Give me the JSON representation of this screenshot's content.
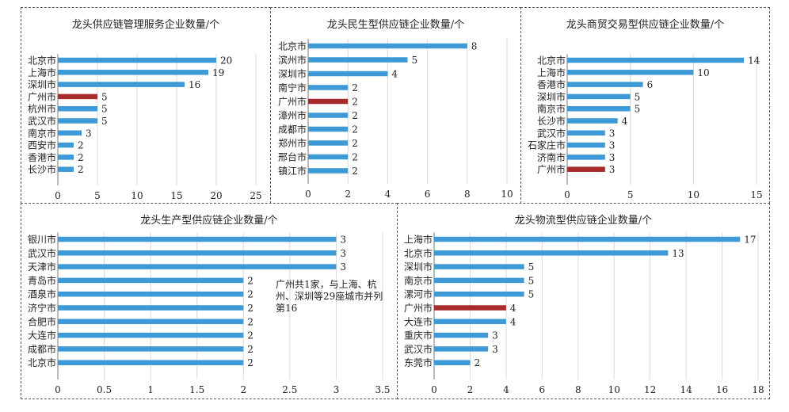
{
  "colors": {
    "bar": "#3d9ad6",
    "highlight": "#a82b2b",
    "grid": "#d9d9d9",
    "axis": "#777777"
  },
  "chart_data": [
    {
      "type": "bar",
      "orientation": "horizontal",
      "title": "龙头供应链管理服务企业数量/个",
      "categories": [
        "北京市",
        "上海市",
        "深圳市",
        "广州市",
        "杭州市",
        "武汉市",
        "南京市",
        "西安市",
        "香港市",
        "长沙市"
      ],
      "values": [
        20,
        19,
        16,
        5,
        5,
        5,
        3,
        2,
        2,
        2
      ],
      "highlight": "广州市",
      "xlim": [
        0,
        25
      ],
      "xticks": [
        0,
        5,
        10,
        15,
        20,
        25
      ],
      "grid": true
    },
    {
      "type": "bar",
      "orientation": "horizontal",
      "title": "龙头民生型供应链企业数量/个",
      "categories": [
        "北京市",
        "滨州市",
        "深圳市",
        "南宁市",
        "广州市",
        "漳州市",
        "成都市",
        "郑州市",
        "邢台市",
        "镇江市"
      ],
      "values": [
        8,
        5,
        4,
        2,
        2,
        2,
        2,
        2,
        2,
        2
      ],
      "highlight": "广州市",
      "xlim": [
        0,
        10
      ],
      "xticks": [
        0,
        2,
        4,
        6,
        8,
        10
      ],
      "grid": true
    },
    {
      "type": "bar",
      "orientation": "horizontal",
      "title": "龙头商贸交易型供应链企业数量/个",
      "categories": [
        "北京市",
        "上海市",
        "香港市",
        "深圳市",
        "南京市",
        "长沙市",
        "武汉市",
        "石家庄市",
        "济南市",
        "广州市"
      ],
      "values": [
        14,
        10,
        6,
        5,
        5,
        4,
        3,
        3,
        3,
        3
      ],
      "highlight": "广州市",
      "xlim": [
        0,
        15
      ],
      "xticks": [
        0,
        5,
        10,
        15
      ],
      "grid": true
    },
    {
      "type": "bar",
      "orientation": "horizontal",
      "title": "龙头生产型供应链企业数量/个",
      "categories": [
        "银川市",
        "武汉市",
        "天津市",
        "青岛市",
        "酒泉市",
        "济宁市",
        "合肥市",
        "大连市",
        "成都市",
        "北京市"
      ],
      "values": [
        3,
        3,
        3,
        2,
        2,
        2,
        2,
        2,
        2,
        2
      ],
      "highlight": "",
      "xlim": [
        0,
        3.5
      ],
      "xticks": [
        0,
        0.5,
        1,
        1.5,
        2,
        2.5,
        3,
        3.5
      ],
      "grid": true,
      "annotation": "广州共1家，与上海、杭州、深圳等29座城市并列第16"
    },
    {
      "type": "bar",
      "orientation": "horizontal",
      "title": "龙头物流型供应链企业数量/个",
      "categories": [
        "上海市",
        "北京市",
        "深圳市",
        "南京市",
        "漯河市",
        "广州市",
        "大连市",
        "重庆市",
        "武汉市",
        "东莞市"
      ],
      "values": [
        17,
        13,
        5,
        5,
        5,
        4,
        4,
        3,
        3,
        2
      ],
      "highlight": "广州市",
      "xlim": [
        0,
        18
      ],
      "xticks": [
        0,
        2,
        4,
        6,
        8,
        10,
        12,
        14,
        16,
        18
      ],
      "grid": true
    }
  ]
}
